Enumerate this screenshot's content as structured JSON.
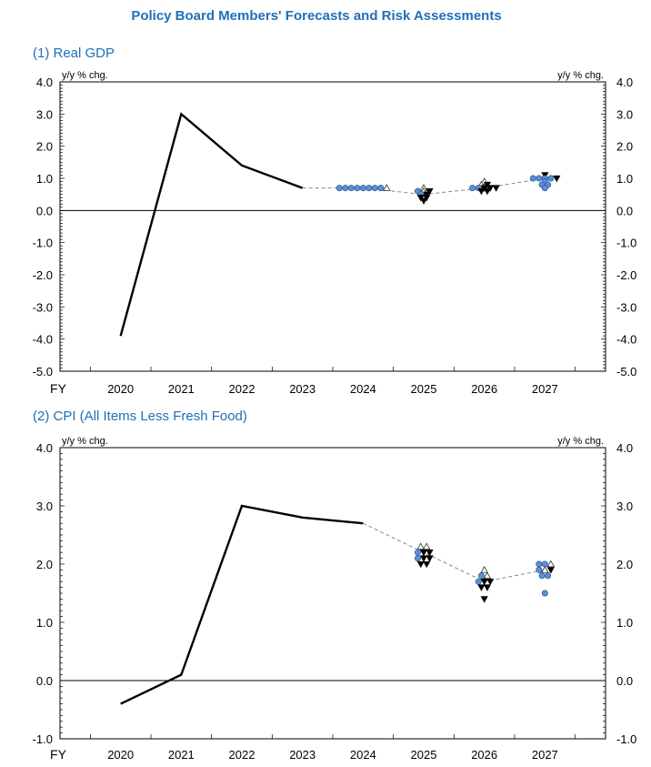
{
  "title": "Policy Board Members' Forecasts and Risk Assessments",
  "colors": {
    "title": "#1f6fb8",
    "actual_line": "#000000",
    "projection_line": "#888888",
    "dot_fill": "#5b8fd6",
    "up_triangle": "#ffffff",
    "down_triangle": "#000000"
  },
  "axis_row_label": "FY",
  "unit_label": "y/y % chg.",
  "chart_data": [
    {
      "type": "line",
      "panel_title": "(1) Real GDP",
      "x_categories": [
        "2020",
        "2021",
        "2022",
        "2023",
        "2024",
        "2025",
        "2026",
        "2027"
      ],
      "ylim": [
        -5.0,
        4.0
      ],
      "ytick_labels": [
        "4.0",
        "3.0",
        "2.0",
        "1.0",
        "0.0",
        "-1.0",
        "-2.0",
        "-3.0",
        "-4.0",
        "-5.0"
      ],
      "actual": [
        {
          "x": "2020",
          "y": -3.9
        },
        {
          "x": "2021",
          "y": 3.0
        },
        {
          "x": "2022",
          "y": 1.4
        },
        {
          "x": "2023",
          "y": 0.7
        }
      ],
      "median_projection": [
        {
          "x": "2023",
          "y": 0.7
        },
        {
          "x": "2024",
          "y": 0.7
        },
        {
          "x": "2025",
          "y": 0.5
        },
        {
          "x": "2026",
          "y": 0.7
        },
        {
          "x": "2027",
          "y": 1.0
        }
      ],
      "member_forecasts": {
        "2024": {
          "dots": [
            0.7,
            0.7,
            0.7,
            0.7,
            0.7,
            0.7,
            0.7,
            0.7
          ],
          "up": [
            0.7
          ],
          "down": []
        },
        "2025": {
          "dots": [
            0.6,
            0.5
          ],
          "up": [
            0.7,
            0.6
          ],
          "down": [
            0.6,
            0.5,
            0.4,
            0.4,
            0.3
          ]
        },
        "2026": {
          "dots": [
            0.7,
            0.7
          ],
          "up": [
            0.9,
            0.8
          ],
          "down": [
            0.8,
            0.7,
            0.7,
            0.7,
            0.6,
            0.6
          ]
        },
        "2027": {
          "dots": [
            1.0,
            1.0,
            1.0,
            1.0,
            0.9,
            0.8,
            0.8,
            0.7
          ],
          "up": [],
          "down": [
            1.1,
            1.0
          ]
        }
      }
    },
    {
      "type": "line",
      "panel_title": "(2) CPI (All Items Less Fresh Food)",
      "x_categories": [
        "2020",
        "2021",
        "2022",
        "2023",
        "2024",
        "2025",
        "2026",
        "2027"
      ],
      "ylim": [
        -1.0,
        4.0
      ],
      "ytick_labels": [
        "4.0",
        "3.0",
        "2.0",
        "1.0",
        "0.0",
        "-1.0"
      ],
      "actual": [
        {
          "x": "2020",
          "y": -0.4
        },
        {
          "x": "2021",
          "y": 0.1
        },
        {
          "x": "2022",
          "y": 3.0
        },
        {
          "x": "2023",
          "y": 2.8
        },
        {
          "x": "2024",
          "y": 2.7
        }
      ],
      "median_projection": [
        {
          "x": "2024",
          "y": 2.7
        },
        {
          "x": "2025",
          "y": 2.2
        },
        {
          "x": "2026",
          "y": 1.7
        },
        {
          "x": "2027",
          "y": 1.9
        }
      ],
      "member_forecasts": {
        "2025": {
          "dots": [
            2.2,
            2.1
          ],
          "up": [
            2.3,
            2.3
          ],
          "down": [
            2.2,
            2.2,
            2.1,
            2.1,
            2.0,
            2.0
          ]
        },
        "2026": {
          "dots": [
            1.8,
            1.7
          ],
          "up": [
            1.9,
            1.8
          ],
          "down": [
            1.7,
            1.7,
            1.6,
            1.6,
            1.4
          ]
        },
        "2027": {
          "dots": [
            2.0,
            2.0,
            1.9,
            1.8,
            1.8,
            1.5
          ],
          "up": [
            2.0,
            1.9
          ],
          "down": [
            1.9
          ]
        }
      }
    }
  ]
}
